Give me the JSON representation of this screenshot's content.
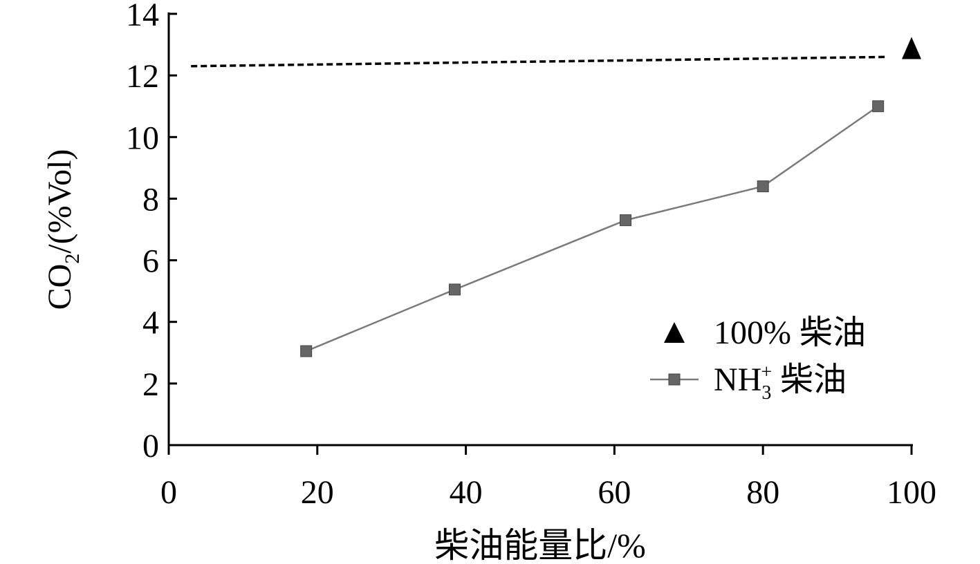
{
  "chart_data": {
    "type": "line",
    "xlabel": "柴油能量比/%",
    "ylabel": {
      "prefix": "CO",
      "subscript": "2",
      "suffix": "/(%Vol)"
    },
    "xlim": [
      0,
      100
    ],
    "ylim": [
      0,
      14
    ],
    "xticks": [
      "0",
      "20",
      "40",
      "60",
      "80",
      "100"
    ],
    "yticks": [
      "0",
      "2",
      "4",
      "6",
      "8",
      "10",
      "12",
      "14"
    ],
    "grid": false,
    "legend_position": "right",
    "series": [
      {
        "key": "pure-diesel",
        "name": "100% 柴油",
        "marker": "triangle",
        "color": "#000000",
        "points": [
          {
            "x": 100,
            "y": 12.8
          }
        ]
      },
      {
        "key": "nh3-diesel",
        "name": {
          "prefix": "NH",
          "subscript": "3",
          "superscript": "+",
          "suffix": " 柴油"
        },
        "marker": "square",
        "color": "#666666",
        "points": [
          {
            "x": 18.5,
            "y": 3.05
          },
          {
            "x": 38.5,
            "y": 5.05
          },
          {
            "x": 61.5,
            "y": 7.3
          },
          {
            "x": 80.0,
            "y": 8.4
          },
          {
            "x": 95.5,
            "y": 11.0
          }
        ]
      }
    ],
    "reference_line": {
      "style": "dashed",
      "color": "#000000",
      "points": [
        {
          "x": 3,
          "y": 12.3
        },
        {
          "x": 96.5,
          "y": 12.6
        }
      ]
    }
  }
}
